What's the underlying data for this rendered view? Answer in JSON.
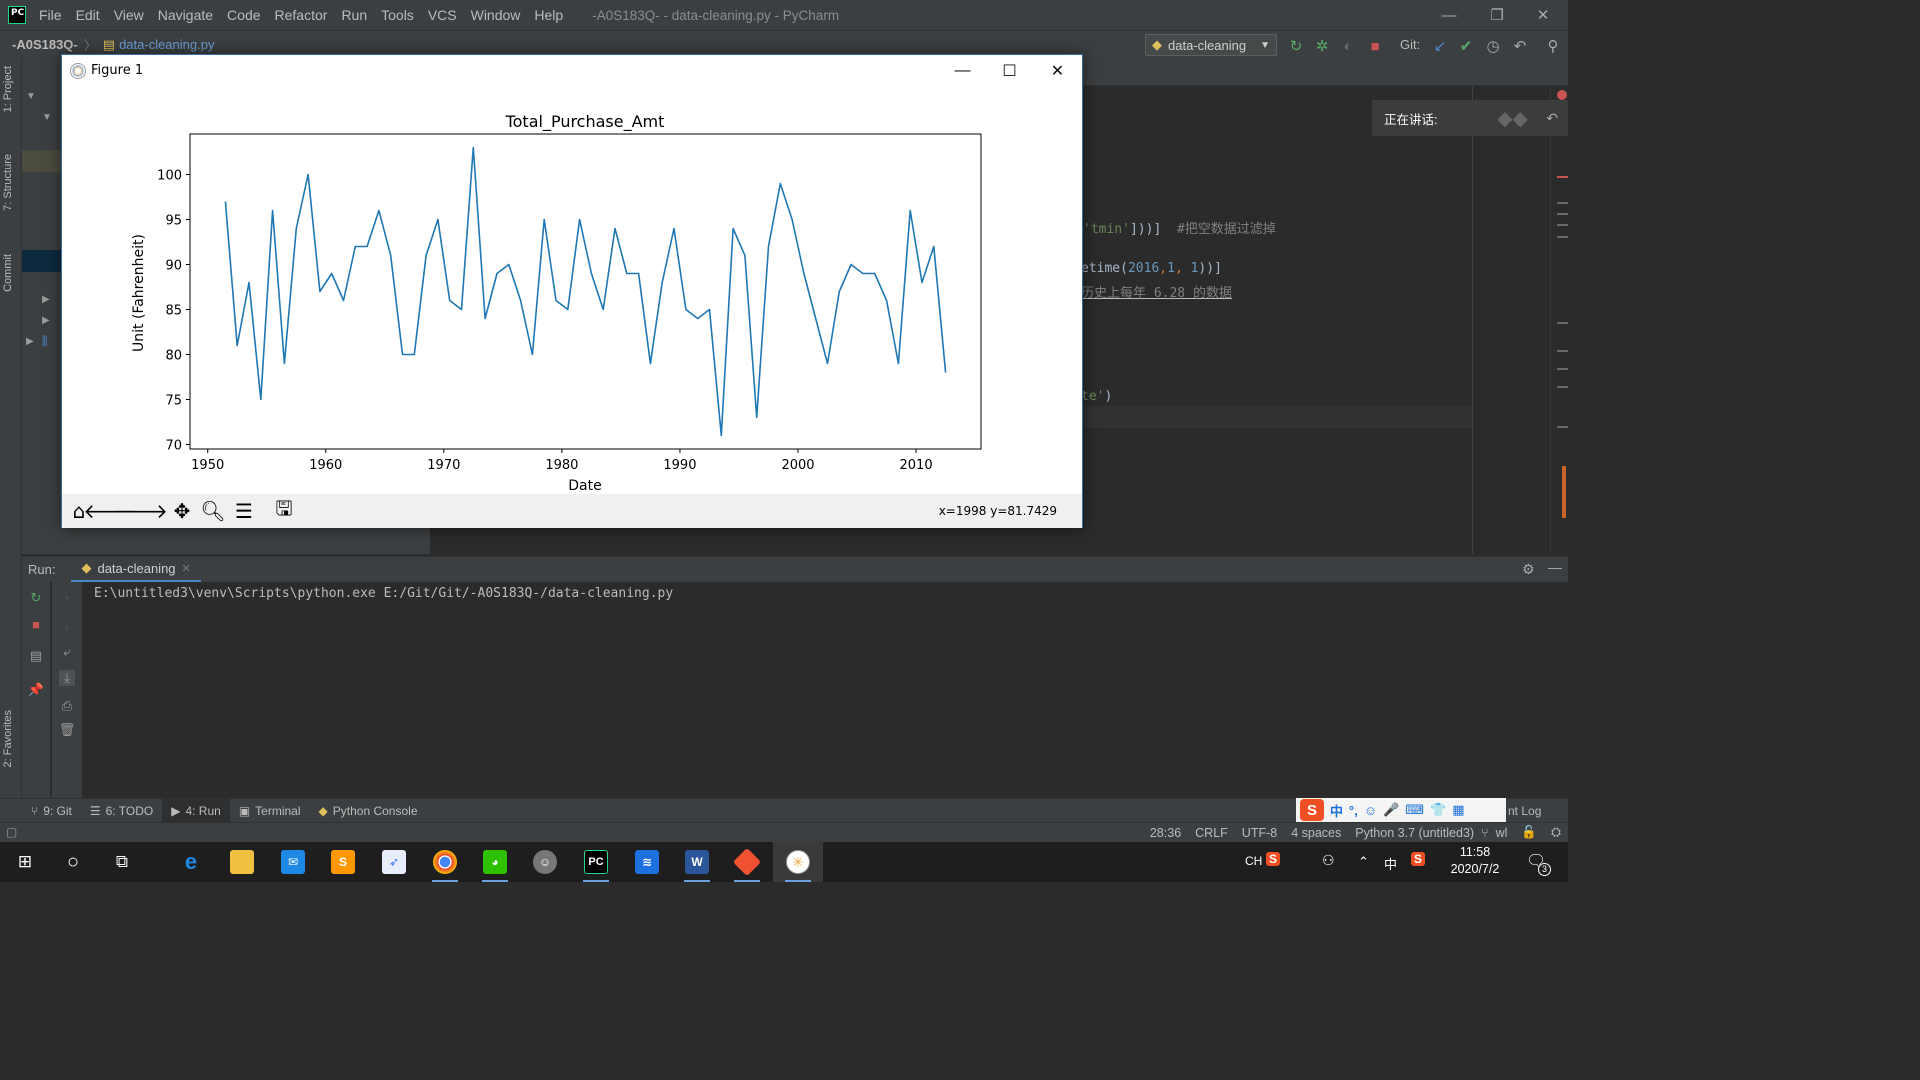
{
  "window": {
    "title": "-A0S183Q- - data-cleaning.py - PyCharm",
    "controls": {
      "minimize": "—",
      "restore": "❐",
      "close": "✕"
    }
  },
  "menu": [
    "File",
    "Edit",
    "View",
    "Navigate",
    "Code",
    "Refactor",
    "Run",
    "Tools",
    "VCS",
    "Window",
    "Help"
  ],
  "breadcrumb": {
    "project": "-A0S183Q-",
    "separator": "〉",
    "file": "data-cleaning.py"
  },
  "run_config": {
    "name": "data-cleaning"
  },
  "git_label": "Git:",
  "left_tool_tabs": [
    "1: Project",
    "7: Structure",
    "Commit",
    "2: Favorites"
  ],
  "editor": {
    "code_fragments": [
      {
        "tokens": [
          {
            "text": "'",
            "color": "#6a8759"
          },
          {
            "text": "tmin",
            "color": "#6a8759"
          },
          {
            "text": "'",
            "color": "#6a8759"
          },
          {
            "text": "]))]  ",
            "color": "#a9b7c6"
          },
          {
            "text": "#把空数据过滤掉",
            "color": "#808080"
          }
        ]
      },
      {
        "tokens": [
          {
            "text": "etime(",
            "color": "#a9b7c6"
          },
          {
            "text": "2016",
            "color": "#6897bb"
          },
          {
            "text": ",",
            "color": "#cc7832"
          },
          {
            "text": "1",
            "color": "#6897bb"
          },
          {
            "text": ", ",
            "color": "#cc7832"
          },
          {
            "text": "1",
            "color": "#6897bb"
          },
          {
            "text": "))]",
            "color": "#a9b7c6"
          }
        ]
      },
      {
        "tokens": [
          {
            "text": "历史上每年 6.28 的数据",
            "color": "#808080"
          }
        ]
      },
      {
        "tokens": [
          {
            "text": "te'",
            "color": "#6a8759"
          },
          {
            "text": ")",
            "color": "#a9b7c6"
          }
        ]
      }
    ]
  },
  "speaking_label": "正在讲话:",
  "figure": {
    "title": "Figure 1",
    "coord_readout": "x=1998 y=81.7429",
    "toolbar_icons": [
      "home-icon",
      "back-icon",
      "forward-icon",
      "pan-icon",
      "zoom-icon",
      "configure-subplots-icon",
      "save-icon"
    ]
  },
  "chart_data": {
    "type": "line",
    "title": "Total_Purchase_Amt",
    "xlabel": "Date",
    "ylabel": "Unit (Fahrenheit)",
    "xlim": [
      1948.5,
      2015.5
    ],
    "ylim": [
      69.5,
      104.5
    ],
    "xticks": [
      1950,
      1960,
      1970,
      1980,
      1990,
      2000,
      2010
    ],
    "yticks": [
      70,
      75,
      80,
      85,
      90,
      95,
      100
    ],
    "line_color": "#1f77b4",
    "grid": false,
    "series": [
      {
        "x": [
          1951.5,
          1952.5,
          1953.5,
          1954.5,
          1955.5,
          1956.5,
          1957.5,
          1958.5,
          1959.5,
          1960.5,
          1961.5,
          1962.5,
          1963.5,
          1964.5,
          1965.5,
          1966.5,
          1967.5,
          1968.5,
          1969.5,
          1970.5,
          1971.5,
          1972.5,
          1973.5,
          1974.5,
          1975.5,
          1976.5,
          1977.5,
          1978.5,
          1979.5,
          1980.5,
          1981.5,
          1982.5,
          1983.5,
          1984.5,
          1985.5,
          1986.5,
          1987.5,
          1988.5,
          1989.5,
          1990.5,
          1991.5,
          1992.5,
          1993.5,
          1994.5,
          1995.5,
          1996.5,
          1997.5,
          1998.5,
          1999.5,
          2000.5,
          2001.5,
          2002.5,
          2003.5,
          2004.5,
          2005.5,
          2006.5,
          2007.5,
          2008.5,
          2009.5,
          2010.5,
          2011.5,
          2012.5
        ],
        "values": [
          97,
          81,
          88,
          75,
          96,
          79,
          94,
          100,
          87,
          89,
          86,
          92,
          92,
          96,
          91,
          80,
          80,
          91,
          95,
          86,
          85,
          103,
          84,
          89,
          90,
          86,
          80,
          95,
          86,
          85,
          95,
          89,
          85,
          94,
          89,
          89,
          79,
          88,
          94,
          85,
          84,
          85,
          71,
          94,
          91,
          73,
          92,
          99,
          95,
          89,
          84,
          79,
          87,
          90,
          89,
          89,
          86,
          79,
          96,
          88,
          92,
          78
        ]
      }
    ]
  },
  "run_panel": {
    "label": "Run:",
    "tab": "data-cleaning",
    "console_output": "E:\\untitled3\\venv\\Scripts\\python.exe E:/Git/Git/-A0S183Q-/data-cleaning.py"
  },
  "bottom_tabs": [
    {
      "label": "9: Git",
      "icon": "git-branch-icon"
    },
    {
      "label": "6: TODO",
      "icon": "list-icon"
    },
    {
      "label": "4: Run",
      "icon": "run-icon"
    },
    {
      "label": "Terminal",
      "icon": "terminal-icon"
    },
    {
      "label": "Python Console",
      "icon": "python-icon"
    }
  ],
  "event_log_fragment": "nt Log",
  "status_bar": [
    "28:36",
    "CRLF",
    "UTF-8",
    "4 spaces",
    "Python 3.7 (untitled3)",
    "wl"
  ],
  "ime": {
    "logo": "S",
    "items": [
      "中",
      "°,",
      "☺",
      "🎤",
      "⌨",
      "👕",
      "▦"
    ]
  },
  "taskbar": {
    "tray_lang": "CH",
    "ime_mode": "中",
    "time": "11:58",
    "date": "2020/7/2",
    "notification_count": "3"
  }
}
